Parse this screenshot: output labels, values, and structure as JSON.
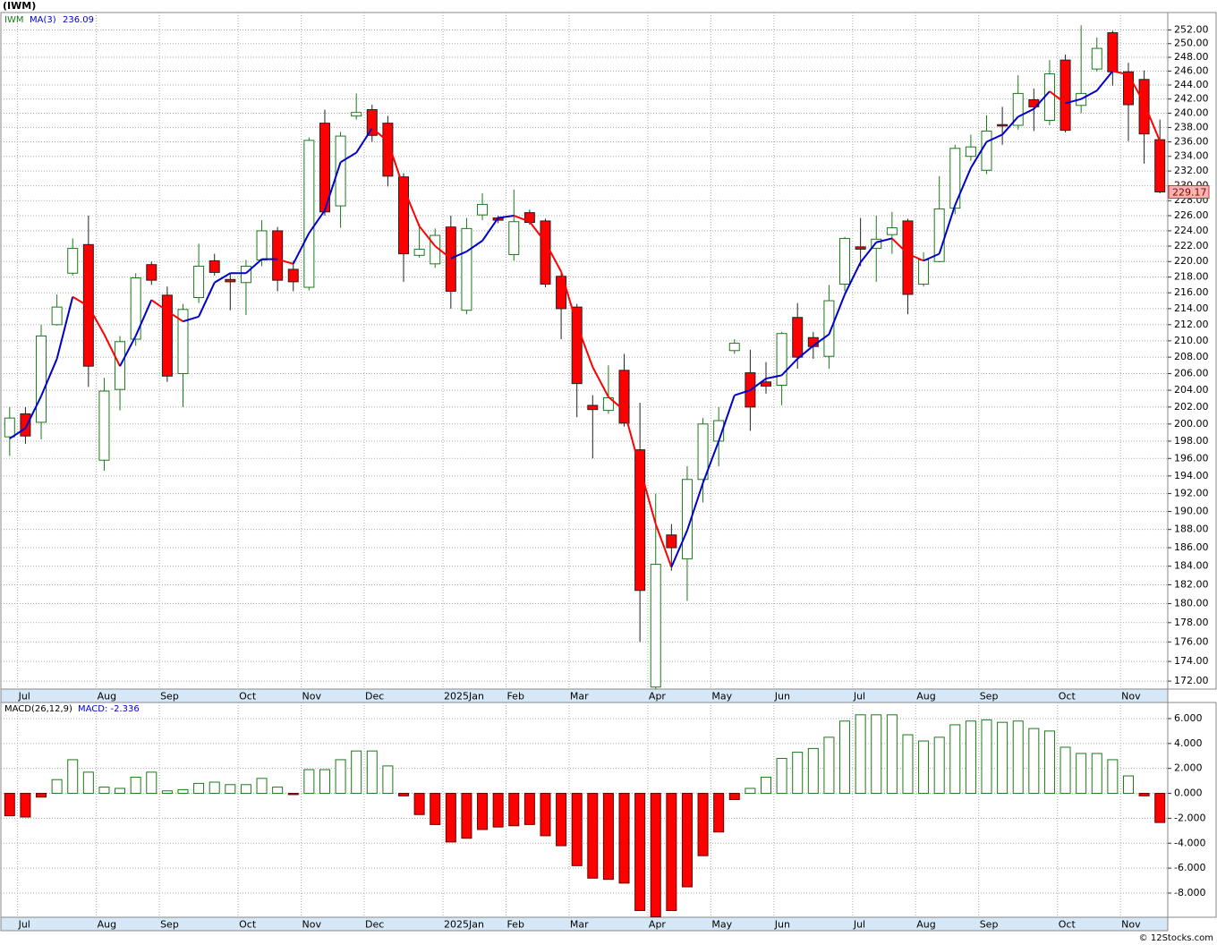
{
  "page_title": "(IWM)",
  "credit": "© 12Stocks.com",
  "chart_data": [
    {
      "type": "candlestick",
      "log": true,
      "grid": true,
      "categories": [
        null,
        "Jul",
        null,
        null,
        null,
        null,
        "Aug",
        null,
        null,
        null,
        "Sep",
        null,
        null,
        null,
        null,
        "Oct",
        null,
        null,
        null,
        "Nov",
        null,
        null,
        null,
        "Dec",
        null,
        null,
        null,
        null,
        "2025Jan",
        null,
        null,
        null,
        "Feb",
        null,
        null,
        null,
        "Mar",
        null,
        null,
        null,
        null,
        "Apr",
        null,
        null,
        null,
        "May",
        null,
        null,
        null,
        "Jun",
        null,
        null,
        null,
        null,
        "Jul",
        null,
        null,
        null,
        "Aug",
        null,
        null,
        null,
        "Sep",
        null,
        null,
        null,
        null,
        "Oct",
        null,
        null,
        null,
        "Nov",
        null,
        null
      ],
      "ylim": [
        171.2,
        254.6
      ],
      "yticks": [
        {
          "value": 172,
          "label": "172.00"
        },
        {
          "value": 174,
          "label": "174.00"
        },
        {
          "value": 176,
          "label": "176.00"
        },
        {
          "value": 178,
          "label": "178.00"
        },
        {
          "value": 180,
          "label": "180.00"
        },
        {
          "value": 182,
          "label": "182.00"
        },
        {
          "value": 184,
          "label": "184.00"
        },
        {
          "value": 186,
          "label": "186.00"
        },
        {
          "value": 188,
          "label": "188.00"
        },
        {
          "value": 190,
          "label": "190.00"
        },
        {
          "value": 192,
          "label": "192.00"
        },
        {
          "value": 194,
          "label": "194.00"
        },
        {
          "value": 196,
          "label": "196.00"
        },
        {
          "value": 198,
          "label": "198.00"
        },
        {
          "value": 200,
          "label": "200.00"
        },
        {
          "value": 202,
          "label": "202.00"
        },
        {
          "value": 204,
          "label": "204.00"
        },
        {
          "value": 206,
          "label": "206.00"
        },
        {
          "value": 208,
          "label": "208.00"
        },
        {
          "value": 210,
          "label": "210.00"
        },
        {
          "value": 212,
          "label": "212.00"
        },
        {
          "value": 214,
          "label": "214.00"
        },
        {
          "value": 216,
          "label": "216.00"
        },
        {
          "value": 218,
          "label": "218.00"
        },
        {
          "value": 220,
          "label": "220.00"
        },
        {
          "value": 222,
          "label": "222.00"
        },
        {
          "value": 224,
          "label": "224.00"
        },
        {
          "value": 226,
          "label": "226.00"
        },
        {
          "value": 228,
          "label": "228.00"
        },
        {
          "value": 230,
          "label": "230.00"
        },
        {
          "value": 232,
          "label": "232.00"
        },
        {
          "value": 234,
          "label": "234.00"
        },
        {
          "value": 236,
          "label": "236.00"
        },
        {
          "value": 238,
          "label": "238.00"
        },
        {
          "value": 240,
          "label": "240.00"
        },
        {
          "value": 242,
          "label": "242.00"
        },
        {
          "value": 244,
          "label": "244.00"
        },
        {
          "value": 246,
          "label": "246.00"
        },
        {
          "value": 248,
          "label": "248.00"
        },
        {
          "value": 250,
          "label": "250.00"
        },
        {
          "value": 252,
          "label": "252.00"
        }
      ],
      "last_label": "229.17",
      "series": [
        {
          "name": "IWM",
          "up_color": "#1a7a1a",
          "down_color": "#ff0000",
          "open": [
            198.5,
            201.2,
            200.2,
            212.0,
            218.5,
            222.2,
            195.8,
            204.1,
            210.2,
            219.6,
            215.7,
            206.0,
            215.4,
            220.1,
            217.7,
            217.3,
            220.2,
            224.0,
            219.0,
            216.7,
            238.6,
            227.3,
            239.6,
            240.5,
            238.6,
            231.2,
            220.8,
            219.7,
            224.5,
            213.8,
            226.1,
            225.7,
            220.9,
            226.4,
            225.3,
            218.1,
            214.2,
            202.2,
            201.6,
            206.4,
            197.0,
            171.4,
            187.4,
            184.8,
            193.6,
            198.0,
            208.8,
            206.1,
            205.0,
            204.6,
            212.9,
            210.4,
            208.1,
            217.1,
            221.9,
            221.7,
            223.5,
            225.3,
            217.1,
            220.0,
            227.0,
            234.0,
            232.1,
            238.4,
            238.3,
            241.9,
            239.0,
            247.6,
            241.1,
            246.3,
            251.6,
            245.9,
            244.8,
            236.3
          ],
          "high": [
            202,
            202,
            212,
            215.8,
            223,
            226,
            205.5,
            210.6,
            218.5,
            220,
            216.8,
            214.6,
            222.3,
            221,
            218.5,
            220.2,
            225.4,
            224.5,
            220.1,
            236.6,
            240.5,
            237.4,
            242.8,
            241.2,
            239.6,
            231.7,
            224.9,
            224.3,
            226,
            225.7,
            229,
            226,
            229.5,
            226.8,
            225.6,
            218.4,
            214.6,
            203.4,
            207,
            208.4,
            202.5,
            192,
            188.6,
            195.1,
            200.7,
            202,
            210.2,
            208.9,
            207.4,
            211.1,
            214.7,
            211.1,
            217,
            223.2,
            225.7,
            226,
            226.5,
            225.6,
            221.2,
            231.3,
            235.6,
            237,
            239.7,
            240.9,
            245.4,
            243.5,
            247.6,
            248.4,
            252.7,
            250.9,
            251.9,
            247.2,
            246.1,
            239.1
          ],
          "low": [
            196.3,
            197.7,
            198.2,
            211.9,
            218.2,
            204.4,
            194.6,
            201.6,
            209.4,
            217,
            205,
            202,
            214.7,
            218.2,
            213.8,
            213.2,
            219.4,
            216.2,
            216.2,
            216.3,
            226,
            224.4,
            239.1,
            236,
            229.9,
            217.4,
            220.5,
            219.2,
            214,
            213.3,
            225.4,
            225,
            220.1,
            224.8,
            216.7,
            210.2,
            200.8,
            196,
            201.2,
            199.7,
            176,
            171.2,
            183.5,
            180.3,
            191,
            195.1,
            208.4,
            199.2,
            203.6,
            202.2,
            206.6,
            207.8,
            206.6,
            216.2,
            219.4,
            217.4,
            221,
            213.3,
            216.8,
            219.9,
            226.2,
            233.4,
            231.6,
            235.6,
            237.7,
            237.5,
            238.3,
            237.3,
            240,
            245.9,
            243.9,
            236.1,
            233,
            229
          ],
          "close": [
            200.7,
            198.6,
            210.6,
            214.2,
            221.7,
            206.9,
            203.9,
            209.9,
            217.9,
            217.6,
            205.7,
            213.9,
            219.4,
            218.6,
            217.4,
            219.4,
            224.0,
            217.6,
            217.4,
            236.2,
            226.5,
            236.8,
            240.1,
            236.9,
            231.3,
            221.0,
            221.6,
            223.4,
            216.2,
            224.3,
            227.5,
            225.4,
            225.2,
            225.1,
            217.1,
            214.0,
            204.8,
            201.7,
            203.1,
            200.1,
            181.4,
            184.2,
            186.0,
            193.6,
            200.0,
            200.4,
            209.7,
            202.0,
            204.5,
            210.9,
            208.0,
            209.3,
            215.0,
            223.0,
            221.6,
            222.9,
            224.4,
            215.8,
            220.2,
            226.9,
            235.1,
            235.3,
            237.5,
            238.2,
            242.8,
            240.9,
            245.6,
            237.6,
            242.8,
            249.3,
            245.9,
            241.2,
            237.1,
            229.17
          ]
        },
        {
          "name": "MA(3)",
          "value_label": "236.09",
          "up_color": "#0000cc",
          "down_color": "#ff0000",
          "values": [
            198.3,
            199.5,
            203.3,
            207.8,
            215.5,
            214.3,
            210.8,
            206.9,
            210.6,
            215.1,
            213.7,
            212.4,
            213.0,
            217.3,
            218.5,
            218.5,
            220.3,
            220.3,
            219.7,
            223.7,
            226.7,
            233.2,
            234.5,
            237.9,
            236.1,
            229.7,
            224.6,
            222.0,
            220.4,
            221.3,
            222.7,
            225.7,
            226.0,
            225.2,
            222.5,
            218.7,
            212.0,
            206.8,
            203.2,
            201.6,
            194.9,
            188.6,
            183.9,
            187.9,
            193.2,
            198.0,
            203.4,
            204.0,
            205.4,
            205.8,
            207.8,
            209.4,
            210.8,
            215.8,
            219.9,
            222.5,
            223.0,
            221.0,
            220.1,
            221.0,
            227.4,
            232.4,
            236.0,
            237.0,
            239.5,
            240.6,
            243.1,
            241.4,
            242.0,
            243.2,
            246.0,
            245.5,
            241.4,
            236.09
          ]
        }
      ]
    },
    {
      "type": "bar",
      "log": false,
      "grid": true,
      "categories": [
        null,
        "Jul",
        null,
        null,
        null,
        null,
        "Aug",
        null,
        null,
        null,
        "Sep",
        null,
        null,
        null,
        null,
        "Oct",
        null,
        null,
        null,
        "Nov",
        null,
        null,
        null,
        "Dec",
        null,
        null,
        null,
        null,
        "2025Jan",
        null,
        null,
        null,
        "Feb",
        null,
        null,
        null,
        "Mar",
        null,
        null,
        null,
        null,
        "Apr",
        null,
        null,
        null,
        "May",
        null,
        null,
        null,
        "Jun",
        null,
        null,
        null,
        null,
        "Jul",
        null,
        null,
        null,
        "Aug",
        null,
        null,
        null,
        "Sep",
        null,
        null,
        null,
        null,
        "Oct",
        null,
        null,
        null,
        "Nov",
        null,
        null
      ],
      "ylim": [
        -9.94,
        7.29
      ],
      "yticks": [
        {
          "value": -8,
          "label": "-8.000"
        },
        {
          "value": -6,
          "label": "-6.000"
        },
        {
          "value": -4,
          "label": "-4.000"
        },
        {
          "value": -2,
          "label": "-2.000"
        },
        {
          "value": 0,
          "label": "0.000"
        },
        {
          "value": 2,
          "label": "2.000"
        },
        {
          "value": 4,
          "label": "4.000"
        },
        {
          "value": 6,
          "label": "6.000"
        }
      ],
      "series": [
        {
          "name": "MACD(26,12,9)",
          "value_label": "MACD: -2.336",
          "up_color": "#1a7a1a",
          "down_color": "#ff0000",
          "values": [
            -1.8,
            -1.9,
            -0.3,
            1.1,
            2.7,
            1.7,
            0.5,
            0.4,
            1.3,
            1.7,
            0.2,
            0.3,
            0.8,
            0.9,
            0.7,
            0.7,
            1.2,
            0.5,
            -0.1,
            1.9,
            1.9,
            2.7,
            3.4,
            3.4,
            2.2,
            -0.2,
            -1.7,
            -2.5,
            -3.9,
            -3.6,
            -2.9,
            -2.7,
            -2.6,
            -2.5,
            -3.4,
            -4.2,
            -5.8,
            -6.8,
            -6.9,
            -7.2,
            -9.4,
            -9.9,
            -9.4,
            -7.5,
            -5.0,
            -3.1,
            -0.5,
            0.4,
            1.3,
            2.8,
            3.3,
            3.6,
            4.5,
            5.8,
            6.3,
            6.3,
            6.3,
            4.7,
            4.2,
            4.5,
            5.5,
            5.8,
            5.9,
            5.7,
            5.8,
            5.2,
            5.0,
            3.7,
            3.2,
            3.2,
            2.7,
            1.4,
            -0.2,
            -2.336
          ]
        }
      ]
    }
  ]
}
